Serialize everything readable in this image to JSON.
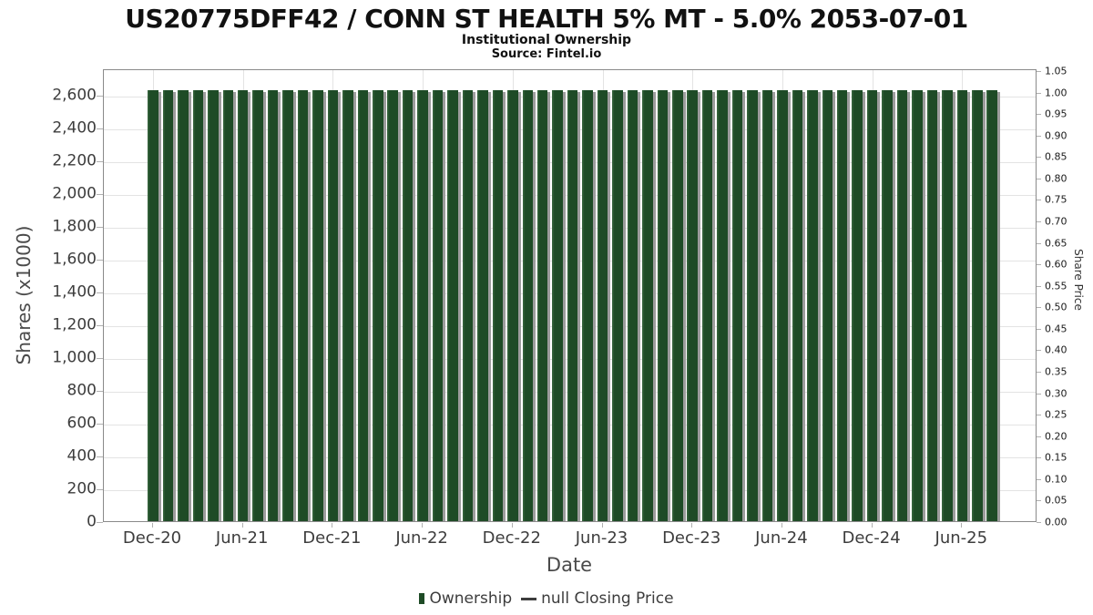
{
  "header": {
    "title": "US20775DFF42 / CONN ST HEALTH 5% MT - 5.0% 2053-07-01",
    "subtitle": "Institutional Ownership",
    "source": "Source: Fintel.io"
  },
  "chart_data": {
    "type": "bar",
    "title": "US20775DFF42 / CONN ST HEALTH 5% MT - 5.0% 2053-07-01",
    "xlabel": "Date",
    "ylabel_left": "Shares (x1000)",
    "ylabel_right": "Share Price",
    "categories": [
      "Dec-20",
      "Jan-21",
      "Feb-21",
      "Mar-21",
      "Apr-21",
      "May-21",
      "Jun-21",
      "Jul-21",
      "Aug-21",
      "Sep-21",
      "Oct-21",
      "Nov-21",
      "Dec-21",
      "Jan-22",
      "Feb-22",
      "Mar-22",
      "Apr-22",
      "May-22",
      "Jun-22",
      "Jul-22",
      "Aug-22",
      "Sep-22",
      "Oct-22",
      "Nov-22",
      "Dec-22",
      "Jan-23",
      "Feb-23",
      "Mar-23",
      "Apr-23",
      "May-23",
      "Jun-23",
      "Jul-23",
      "Aug-23",
      "Sep-23",
      "Oct-23",
      "Nov-23",
      "Dec-23",
      "Jan-24",
      "Feb-24",
      "Mar-24",
      "Apr-24",
      "May-24",
      "Jun-24",
      "Jul-24",
      "Aug-24",
      "Sep-24",
      "Oct-24",
      "Nov-24",
      "Dec-24",
      "Jan-25",
      "Feb-25",
      "Mar-25",
      "Apr-25",
      "May-25",
      "Jun-25",
      "Jul-25",
      "Aug-25"
    ],
    "values": [
      2630,
      2630,
      2630,
      2630,
      2630,
      2630,
      2630,
      2630,
      2630,
      2630,
      2630,
      2630,
      2630,
      2630,
      2630,
      2630,
      2630,
      2630,
      2630,
      2630,
      2630,
      2630,
      2630,
      2630,
      2630,
      2630,
      2630,
      2630,
      2630,
      2630,
      2630,
      2630,
      2630,
      2630,
      2630,
      2630,
      2630,
      2630,
      2630,
      2630,
      2630,
      2630,
      2630,
      2630,
      2630,
      2630,
      2630,
      2630,
      2630,
      2630,
      2630,
      2630,
      2630,
      2630,
      2630,
      2630,
      2630
    ],
    "series": [
      {
        "name": "Ownership",
        "type": "bar",
        "color": "#1e4b26"
      },
      {
        "name": "null Closing Price",
        "type": "line",
        "color": "#3d3d3d",
        "values": []
      }
    ],
    "x_ticks": [
      "Dec-20",
      "Jun-21",
      "Dec-21",
      "Jun-22",
      "Dec-22",
      "Jun-23",
      "Dec-23",
      "Jun-24",
      "Dec-24",
      "Jun-25"
    ],
    "y_ticks_left": [
      "0",
      "200",
      "400",
      "600",
      "800",
      "1,000",
      "1,200",
      "1,400",
      "1,600",
      "1,800",
      "2,000",
      "2,200",
      "2,400",
      "2,600"
    ],
    "y_ticks_left_values": [
      0,
      200,
      400,
      600,
      800,
      1000,
      1200,
      1400,
      1600,
      1800,
      2000,
      2200,
      2400,
      2600
    ],
    "y_ticks_right": [
      "0.00",
      "0.05",
      "0.10",
      "0.15",
      "0.20",
      "0.25",
      "0.30",
      "0.35",
      "0.40",
      "0.45",
      "0.50",
      "0.55",
      "0.60",
      "0.65",
      "0.70",
      "0.75",
      "0.80",
      "0.85",
      "0.90",
      "0.95",
      "1.00",
      "1.05"
    ],
    "y_ticks_right_values": [
      0,
      0.05,
      0.1,
      0.15,
      0.2,
      0.25,
      0.3,
      0.35,
      0.4,
      0.45,
      0.5,
      0.55,
      0.6,
      0.65,
      0.7,
      0.75,
      0.8,
      0.85,
      0.9,
      0.95,
      1.0,
      1.05
    ],
    "ylim_left": [
      0,
      2761
    ],
    "ylim_right": [
      0,
      1.05
    ],
    "grid": true,
    "legend_position": "bottom",
    "bar_color": "#1e4b26",
    "bar_shadow_color": "#9c9c9c"
  },
  "legend": {
    "ownership_label": "Ownership",
    "price_label": "null Closing Price"
  }
}
